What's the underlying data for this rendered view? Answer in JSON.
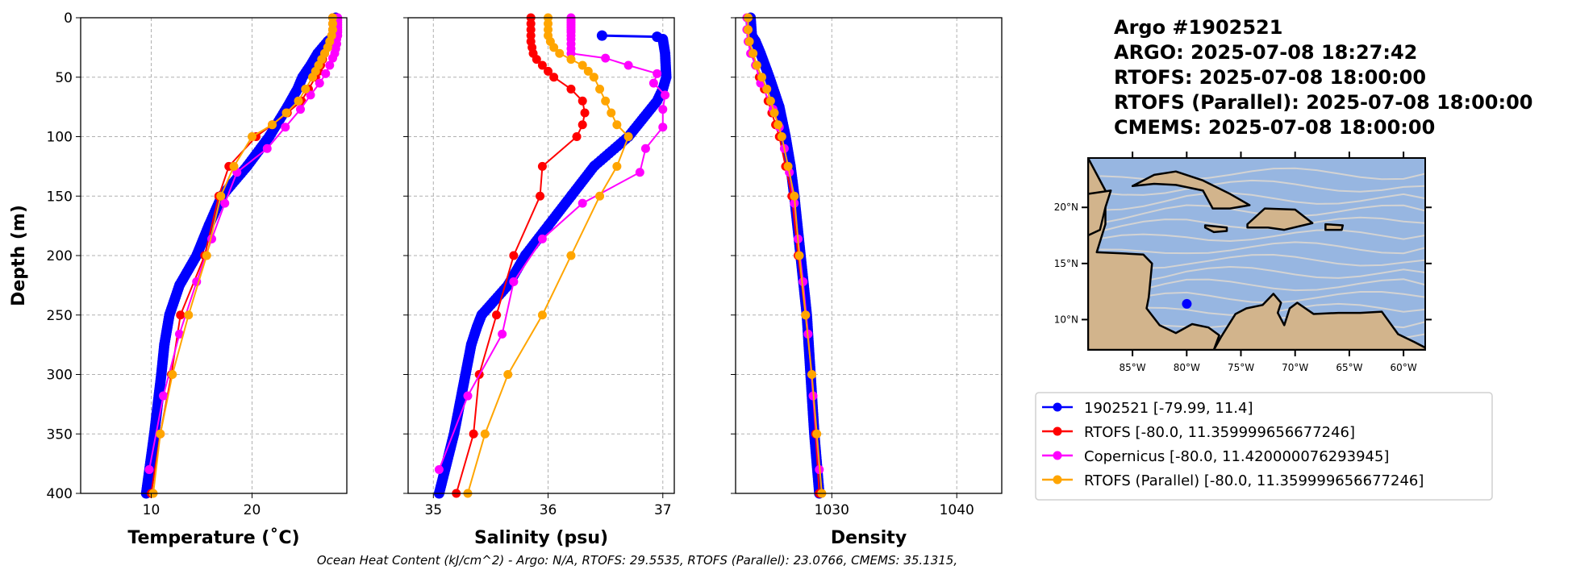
{
  "title_lines": [
    "Argo #1902521",
    "ARGO:  2025-07-08 18:27:42",
    "RTOFS: 2025-07-08 18:00:00",
    "RTOFS (Parallel): 2025-07-08 18:00:00",
    "CMEMS: 2025-07-08 18:00:00"
  ],
  "caption": "Ocean Heat Content (kJ/cm^2) - Argo: N/A,  RTOFS: 29.5535,  RTOFS (Parallel): 23.0766,  CMEMS: 35.1315,",
  "colors": {
    "argo": "#0000ff",
    "rtofs": "#ff0000",
    "copernicus": "#ff00ff",
    "parallel": "#ffa500",
    "ocean": "#97b6e1",
    "land": "#d2b48c",
    "streamline": "#d3d3d3"
  },
  "legend": [
    {
      "key": "argo",
      "label": "1902521 [-79.99, 11.4]"
    },
    {
      "key": "rtofs",
      "label": "RTOFS [-80.0, 11.359999656677246]"
    },
    {
      "key": "copernicus",
      "label": "Copernicus [-80.0, 11.420000076293945]"
    },
    {
      "key": "parallel",
      "label": "RTOFS (Parallel) [-80.0, 11.359999656677246]"
    }
  ],
  "map": {
    "lon_range": [
      -89.1,
      -58.0
    ],
    "lat_range": [
      7.3,
      24.4
    ],
    "lon_ticks": [
      {
        "v": -85,
        "label": "85°W"
      },
      {
        "v": -80,
        "label": "80°W"
      },
      {
        "v": -75,
        "label": "75°W"
      },
      {
        "v": -70,
        "label": "70°W"
      },
      {
        "v": -65,
        "label": "65°W"
      },
      {
        "v": -60,
        "label": "60°W"
      }
    ],
    "lat_ticks": [
      {
        "v": 20,
        "label": "20°N"
      },
      {
        "v": 15,
        "label": "15°N"
      },
      {
        "v": 10,
        "label": "10°N"
      }
    ],
    "float_position": {
      "lon": -79.99,
      "lat": 11.4
    }
  },
  "chart_data": [
    {
      "type": "line",
      "xlabel": "Temperature (˚C)",
      "ylabel": "Depth (m)",
      "xlim": [
        3,
        29.4
      ],
      "ylim": [
        400,
        0
      ],
      "xticks": [
        {
          "v": 10,
          "label": "10"
        },
        {
          "v": 20,
          "label": "20"
        }
      ],
      "yticks": [
        {
          "v": 0,
          "label": "0"
        },
        {
          "v": 50,
          "label": "50"
        },
        {
          "v": 100,
          "label": "100"
        },
        {
          "v": 150,
          "label": "150"
        },
        {
          "v": 200,
          "label": "200"
        },
        {
          "v": 250,
          "label": "250"
        },
        {
          "v": 300,
          "label": "300"
        },
        {
          "v": 350,
          "label": "350"
        },
        {
          "v": 400,
          "label": "400"
        }
      ],
      "grid": true,
      "series": [
        {
          "key": "argo",
          "dense": true,
          "depth": [
            0,
            15,
            20,
            30,
            40,
            50,
            60,
            75,
            100,
            125,
            150,
            175,
            200,
            225,
            250,
            275,
            300,
            350,
            400
          ],
          "values": [
            28.3,
            28.2,
            27.5,
            26.5,
            25.8,
            25.0,
            24.5,
            23.5,
            21.7,
            19.5,
            17.0,
            15.7,
            14.5,
            12.8,
            11.8,
            11.3,
            11.0,
            10.3,
            9.5
          ]
        },
        {
          "key": "rtofs",
          "depth": [
            0,
            5,
            10,
            15,
            20,
            25,
            30,
            35,
            40,
            45,
            50,
            60,
            70,
            80,
            90,
            100,
            125,
            150,
            200,
            250,
            300,
            350,
            400
          ],
          "values": [
            28.0,
            28.0,
            28.0,
            27.9,
            27.8,
            27.5,
            27.2,
            27.0,
            26.8,
            26.6,
            26.3,
            25.6,
            24.9,
            23.5,
            22.0,
            20.4,
            17.7,
            16.7,
            15.3,
            12.9,
            12.0,
            10.9,
            10.0
          ]
        },
        {
          "key": "copernicus",
          "depth": [
            0,
            2,
            4,
            6,
            8,
            10,
            12,
            15,
            18,
            22,
            26,
            30,
            34,
            40,
            47,
            55,
            65,
            77,
            92,
            110,
            130,
            156,
            186,
            222,
            266,
            318,
            380
          ],
          "values": [
            28.5,
            28.5,
            28.5,
            28.5,
            28.5,
            28.5,
            28.5,
            28.5,
            28.4,
            28.4,
            28.3,
            28.2,
            28.0,
            27.7,
            27.3,
            26.7,
            25.8,
            24.8,
            23.3,
            21.5,
            18.5,
            17.3,
            16.0,
            14.5,
            12.8,
            11.2,
            9.8
          ]
        },
        {
          "key": "parallel",
          "depth": [
            0,
            5,
            10,
            15,
            20,
            25,
            30,
            35,
            40,
            45,
            50,
            60,
            70,
            80,
            90,
            100,
            125,
            150,
            200,
            250,
            300,
            350,
            400
          ],
          "values": [
            28.0,
            28.0,
            28.0,
            27.9,
            27.7,
            27.5,
            27.2,
            26.9,
            26.6,
            26.3,
            26.0,
            25.3,
            24.6,
            23.4,
            22.0,
            20.0,
            18.2,
            16.9,
            15.5,
            13.7,
            12.1,
            10.9,
            10.2
          ]
        }
      ]
    },
    {
      "type": "line",
      "xlabel": "Salinity (psu)",
      "ylabel": "",
      "xlim": [
        34.78,
        37.1
      ],
      "ylim": [
        400,
        0
      ],
      "xticks": [
        {
          "v": 35,
          "label": "35"
        },
        {
          "v": 36,
          "label": "36"
        },
        {
          "v": 37,
          "label": "37"
        }
      ],
      "yticks": [
        {
          "v": 0
        },
        {
          "v": 50
        },
        {
          "v": 100
        },
        {
          "v": 150
        },
        {
          "v": 200
        },
        {
          "v": 250
        },
        {
          "v": 300
        },
        {
          "v": 350
        },
        {
          "v": 400
        }
      ],
      "grid": true,
      "series": [
        {
          "key": "argo",
          "dense": true,
          "depth": [
            15,
            16,
            18,
            30,
            50,
            60,
            70,
            100,
            125,
            150,
            175,
            200,
            225,
            250,
            260,
            275,
            300,
            350,
            400
          ],
          "values": [
            36.47,
            36.95,
            37.0,
            37.02,
            37.03,
            37.0,
            36.95,
            36.7,
            36.4,
            36.2,
            36.0,
            35.8,
            35.65,
            35.42,
            35.38,
            35.33,
            35.28,
            35.18,
            35.05
          ]
        },
        {
          "key": "rtofs",
          "depth": [
            0,
            5,
            10,
            15,
            20,
            25,
            30,
            35,
            40,
            45,
            50,
            60,
            70,
            80,
            90,
            100,
            125,
            150,
            200,
            250,
            300,
            350,
            400
          ],
          "values": [
            35.85,
            35.85,
            35.85,
            35.85,
            35.85,
            35.86,
            35.87,
            35.9,
            35.95,
            36.0,
            36.05,
            36.2,
            36.3,
            36.32,
            36.3,
            36.25,
            35.95,
            35.93,
            35.7,
            35.55,
            35.4,
            35.35,
            35.2
          ]
        },
        {
          "key": "copernicus",
          "depth": [
            0,
            2,
            4,
            6,
            8,
            10,
            12,
            15,
            18,
            22,
            26,
            30,
            34,
            40,
            47,
            55,
            65,
            77,
            92,
            110,
            130,
            156,
            186,
            222,
            266,
            318,
            380
          ],
          "values": [
            36.2,
            36.2,
            36.2,
            36.2,
            36.2,
            36.2,
            36.2,
            36.2,
            36.2,
            36.2,
            36.2,
            36.2,
            36.5,
            36.7,
            36.95,
            36.92,
            37.02,
            37.0,
            37.0,
            36.85,
            36.8,
            36.3,
            35.95,
            35.7,
            35.6,
            35.3,
            35.05
          ]
        },
        {
          "key": "parallel",
          "depth": [
            0,
            5,
            10,
            15,
            20,
            25,
            30,
            35,
            40,
            45,
            50,
            60,
            70,
            80,
            90,
            100,
            125,
            150,
            200,
            250,
            300,
            350,
            400
          ],
          "values": [
            36.0,
            36.0,
            36.0,
            36.0,
            36.02,
            36.05,
            36.1,
            36.2,
            36.3,
            36.35,
            36.4,
            36.45,
            36.5,
            36.55,
            36.6,
            36.7,
            36.6,
            36.45,
            36.2,
            35.95,
            35.65,
            35.45,
            35.3
          ]
        }
      ]
    },
    {
      "type": "line",
      "xlabel": "Density",
      "ylabel": "",
      "xlim": [
        1022.3,
        1043.6
      ],
      "ylim": [
        400,
        0
      ],
      "xticks": [
        {
          "v": 1030,
          "label": "1030"
        },
        {
          "v": 1040,
          "label": "1040"
        }
      ],
      "yticks": [
        {
          "v": 0
        },
        {
          "v": 50
        },
        {
          "v": 100
        },
        {
          "v": 150
        },
        {
          "v": 200
        },
        {
          "v": 250
        },
        {
          "v": 300
        },
        {
          "v": 350
        },
        {
          "v": 400
        }
      ],
      "grid": true,
      "series": [
        {
          "key": "argo",
          "dense": true,
          "depth": [
            0,
            15,
            20,
            30,
            50,
            75,
            100,
            125,
            150,
            200,
            250,
            300,
            350,
            400
          ],
          "values": [
            1023.5,
            1023.6,
            1023.9,
            1024.3,
            1025.0,
            1025.8,
            1026.3,
            1026.7,
            1027.0,
            1027.5,
            1028.0,
            1028.3,
            1028.6,
            1029.0
          ]
        },
        {
          "key": "rtofs",
          "depth": [
            0,
            10,
            20,
            30,
            40,
            50,
            60,
            70,
            80,
            90,
            100,
            125,
            150,
            200,
            250,
            300,
            350,
            400
          ],
          "values": [
            1023.3,
            1023.3,
            1023.4,
            1023.6,
            1023.9,
            1024.2,
            1024.6,
            1024.9,
            1025.2,
            1025.5,
            1025.8,
            1026.3,
            1026.8,
            1027.3,
            1027.9,
            1028.4,
            1028.7,
            1029.0
          ]
        },
        {
          "key": "copernicus",
          "depth": [
            0,
            10,
            20,
            30,
            40,
            55,
            77,
            92,
            110,
            130,
            156,
            186,
            222,
            266,
            318,
            380
          ],
          "values": [
            1023.2,
            1023.2,
            1023.3,
            1023.5,
            1023.9,
            1024.3,
            1025.3,
            1025.8,
            1026.2,
            1026.6,
            1027.0,
            1027.3,
            1027.7,
            1028.1,
            1028.5,
            1029.0
          ]
        },
        {
          "key": "parallel",
          "depth": [
            0,
            10,
            20,
            30,
            40,
            50,
            60,
            70,
            80,
            90,
            100,
            125,
            150,
            200,
            250,
            300,
            350,
            400
          ],
          "values": [
            1023.3,
            1023.3,
            1023.4,
            1023.7,
            1024.0,
            1024.4,
            1024.8,
            1025.1,
            1025.4,
            1025.7,
            1026.0,
            1026.5,
            1027.0,
            1027.4,
            1027.9,
            1028.4,
            1028.8,
            1029.2
          ]
        }
      ]
    }
  ]
}
